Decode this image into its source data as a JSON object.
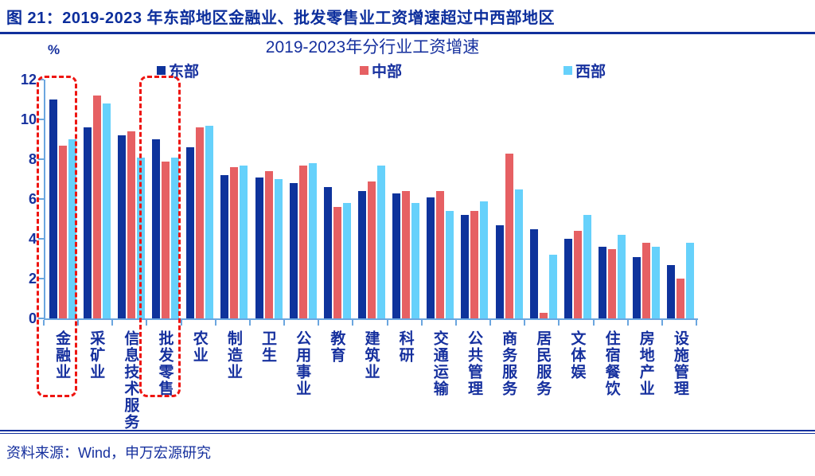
{
  "header": {
    "title": "图 21：2019-2023 年东部地区金融业、批发零售业工资增速超过中西部地区"
  },
  "footer": {
    "source": "资料来源：Wind，申万宏源研究"
  },
  "colors": {
    "accent_text": "#16309e",
    "axis": "#6ba6df",
    "highlight_dash": "#ee1511",
    "east_bar": "#0e339c",
    "central_bar": "#e66063",
    "west_bar": "#66d1fb"
  },
  "chart_data": {
    "type": "bar",
    "title": "2019-2023年分行业工资增速",
    "y_unit": "%",
    "xlabel": "",
    "ylabel": "",
    "ylim": [
      0,
      12
    ],
    "yticks": [
      0,
      2,
      4,
      6,
      8,
      10,
      12
    ],
    "grid": false,
    "legend_position": "top",
    "categories": [
      "金融业",
      "采矿业",
      "信息技术服务",
      "批发零售",
      "农业",
      "制造业",
      "卫生",
      "公用事业",
      "教育",
      "建筑业",
      "科研",
      "交通运输",
      "公共管理",
      "商务服务",
      "居民服务",
      "文体娱",
      "住宿餐饮",
      "房地产业",
      "设施管理"
    ],
    "series": [
      {
        "name": "东部",
        "color": "#0e339c",
        "values": [
          11.0,
          9.6,
          9.2,
          9.0,
          8.6,
          7.2,
          7.1,
          6.8,
          6.6,
          6.4,
          6.3,
          6.1,
          5.2,
          4.7,
          4.5,
          4.0,
          3.6,
          3.1,
          2.7
        ]
      },
      {
        "name": "中部",
        "color": "#e66063",
        "values": [
          8.7,
          11.2,
          9.4,
          7.9,
          9.6,
          7.6,
          7.4,
          7.7,
          5.6,
          6.9,
          6.4,
          6.4,
          5.4,
          8.3,
          0.3,
          4.4,
          3.5,
          3.8,
          2.0
        ]
      },
      {
        "name": "西部",
        "color": "#66d1fb",
        "values": [
          9.0,
          10.8,
          8.1,
          8.1,
          9.7,
          7.7,
          7.0,
          7.8,
          5.8,
          7.7,
          5.8,
          5.4,
          5.9,
          6.5,
          3.2,
          5.2,
          4.2,
          3.6,
          3.8
        ]
      }
    ],
    "highlighted_categories": [
      "金融业",
      "批发零售"
    ]
  }
}
